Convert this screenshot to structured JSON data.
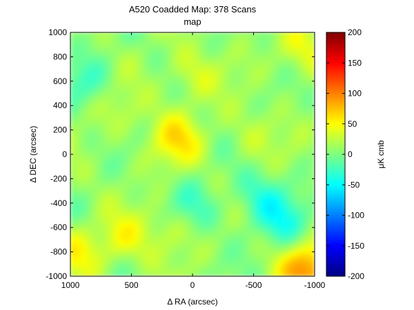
{
  "chart_data": {
    "type": "heatmap",
    "title": "A520 Coadded Map: 378 Scans",
    "subtitle": "map",
    "xlabel": "Δ RA (arcsec)",
    "ylabel": "Δ DEC (arcsec)",
    "x_range": [
      1000,
      -1000
    ],
    "y_range": [
      -1000,
      1000
    ],
    "x_ticks": [
      1000,
      500,
      0,
      -500,
      -1000
    ],
    "x_tick_labels": [
      "1000",
      "500",
      "0",
      "-500",
      "-1000"
    ],
    "y_ticks": [
      -1000,
      -800,
      -600,
      -400,
      -200,
      0,
      200,
      400,
      600,
      800,
      1000
    ],
    "y_tick_labels": [
      "-1000",
      "-800",
      "-600",
      "-400",
      "-200",
      "0",
      "200",
      "400",
      "600",
      "800",
      "1000"
    ],
    "colorbar": {
      "label": "μK cmb",
      "range": [
        -200,
        200
      ],
      "ticks": [
        -200,
        -150,
        -100,
        -50,
        0,
        50,
        100,
        150,
        200
      ],
      "tick_labels": [
        "-200",
        "-150",
        "-100",
        "-50",
        "0",
        "50",
        "100",
        "150",
        "200"
      ],
      "colormap": "jet"
    },
    "grid": false,
    "features": [
      {
        "x": 130,
        "y": 120,
        "value": 55
      },
      {
        "x": 150,
        "y": -600,
        "value": 35
      },
      {
        "x": 550,
        "y": -700,
        "value": 40
      },
      {
        "x": -500,
        "y": 150,
        "value": 25
      },
      {
        "x": -950,
        "y": -950,
        "value": 95
      },
      {
        "x": -900,
        "y": 850,
        "value": 40
      },
      {
        "x": 950,
        "y": -800,
        "value": 45
      },
      {
        "x": 0,
        "y": 650,
        "value": 35
      },
      {
        "x": 600,
        "y": 350,
        "value": 25
      },
      {
        "x": -550,
        "y": -350,
        "value": -25
      },
      {
        "x": 0,
        "y": -450,
        "value": -25
      },
      {
        "x": -750,
        "y": -550,
        "value": -30
      },
      {
        "x": 850,
        "y": 600,
        "value": -20
      }
    ]
  }
}
